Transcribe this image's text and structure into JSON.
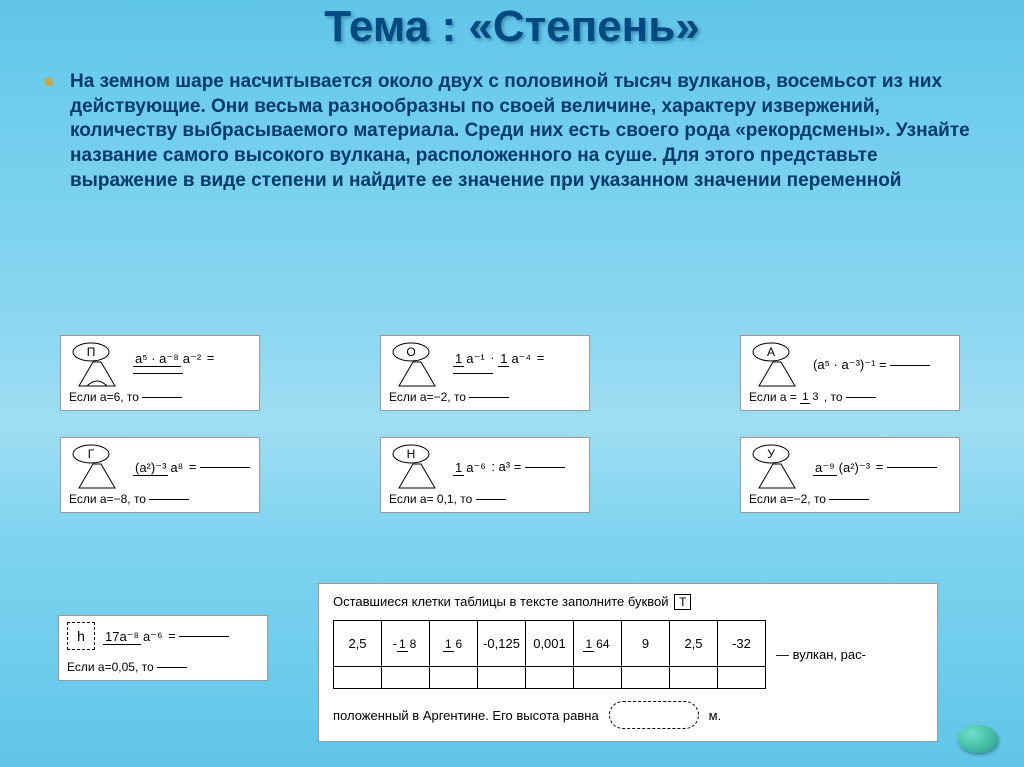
{
  "title": "Тема : «Степень»",
  "paragraph": "На земном шаре насчитывается около двух с половиной тысяч вулканов, восемьсот из них действующие. Они весьма разнообразны по своей величине, характеру извержений, количеству выбрасываемого материала. Среди них есть своего рода «рекордсмены».   Узнайте название самого высокого вулкана, расположенного на суше. Для этого представьте выражение в виде степени и найдите ее значение при указанном значении переменной",
  "volcanoes": {
    "P": {
      "letter": "П",
      "num": "a⁵ · a⁻⁸",
      "den": "a⁻²",
      "cond": "Если a=6, то"
    },
    "G": {
      "letter": "Г",
      "num": "(a²)⁻³",
      "den": "a⁸",
      "cond": "Если a=−8, то"
    },
    "O": {
      "letter": "О",
      "num_l": "1",
      "den_l": "a⁻¹",
      "num_r": "1",
      "den_r": "a⁻⁴",
      "cond": "Если a=−2, то"
    },
    "N": {
      "letter": "Н",
      "num": "1",
      "den": "a⁻⁶",
      "extra": ": a³ =",
      "cond": "Если a= 0,1, то"
    },
    "A": {
      "letter": "А",
      "expr": "(a⁵ · a⁻³)⁻¹ =",
      "cond_pre": "Если a =",
      "cond_num": "1",
      "cond_den": "3",
      "cond_post": ", то"
    },
    "U": {
      "letter": "У",
      "num": "a⁻⁹",
      "den": "(a²)⁻³",
      "cond": "Если a=−2, то"
    }
  },
  "hbox": {
    "letter": "h",
    "num": "17a⁻⁸",
    "den": "a⁻⁶",
    "cond": "Если a=0,05, то"
  },
  "table": {
    "instruction_pre": "Оставшиеся клетки таблицы в тексте заполните буквой",
    "instruction_box": "Т",
    "cells": [
      "2,5",
      "frac:-1/8",
      "frac:1/6",
      "-0,125",
      "0,001",
      "frac:1/64",
      "9",
      "2,5",
      "-32"
    ],
    "after": "— вулкан, рас-",
    "bottom_pre": "положенный в Аргентине. Его высота равна",
    "bottom_unit": "м."
  },
  "colors": {
    "title": "#004a7f",
    "text": "#003a66",
    "bullet": "#c9a84a"
  }
}
